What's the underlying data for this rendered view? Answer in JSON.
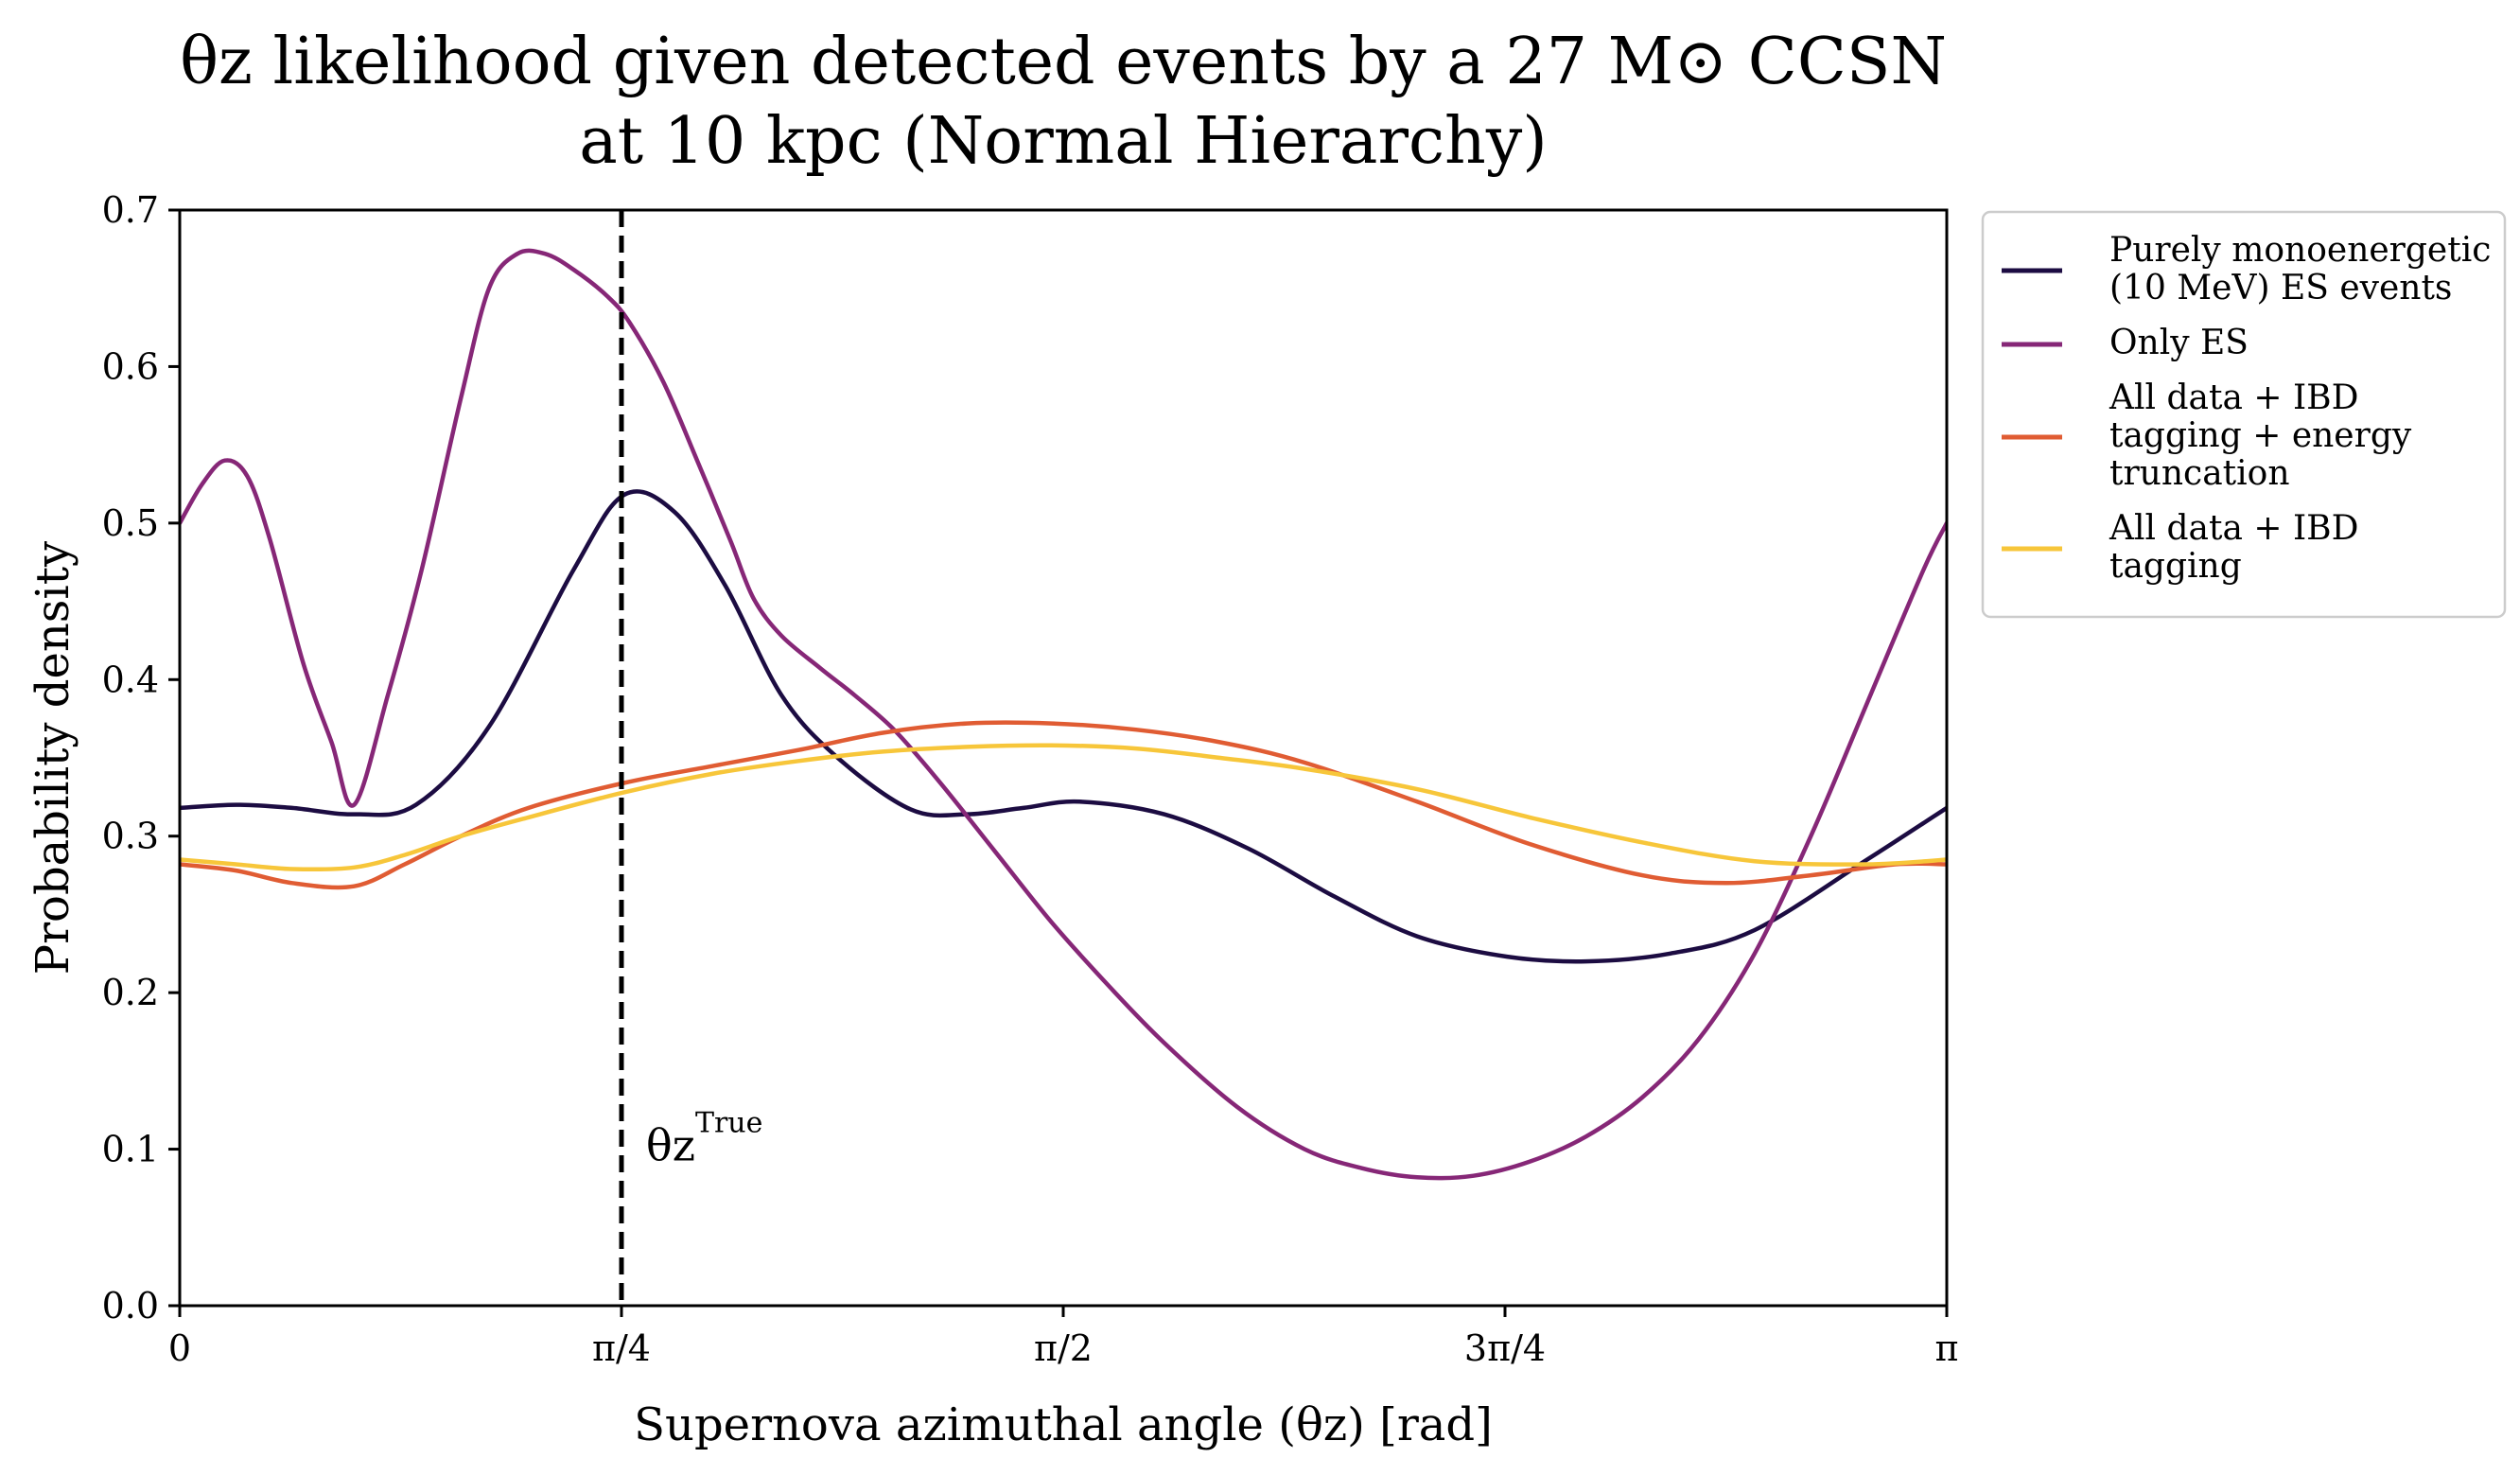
{
  "chart_data": {
    "type": "line",
    "title_lines": [
      "θz likelihood given detected events by a 27 M⊙ CCSN",
      "at 10 kpc (Normal Hierarchy)"
    ],
    "xlabel": "Supernova azimuthal angle (θz) [rad]",
    "ylabel": "Probability density",
    "xlim": [
      0,
      3.14159
    ],
    "ylim": [
      0,
      0.7
    ],
    "grid": false,
    "legend_position": "outside-right",
    "x_ticks": [
      {
        "value": 0,
        "label": "0"
      },
      {
        "value": 0.7854,
        "label": "π/4"
      },
      {
        "value": 1.5708,
        "label": "π/2"
      },
      {
        "value": 2.3562,
        "label": "3π/4"
      },
      {
        "value": 3.14159,
        "label": "π"
      }
    ],
    "y_ticks": [
      {
        "value": 0.0,
        "label": "0.0"
      },
      {
        "value": 0.1,
        "label": "0.1"
      },
      {
        "value": 0.2,
        "label": "0.2"
      },
      {
        "value": 0.3,
        "label": "0.3"
      },
      {
        "value": 0.4,
        "label": "0.4"
      },
      {
        "value": 0.5,
        "label": "0.5"
      },
      {
        "value": 0.6,
        "label": "0.6"
      },
      {
        "value": 0.7,
        "label": "0.7"
      }
    ],
    "vline": {
      "x": 0.7854,
      "label": "θz True",
      "color": "#000000"
    },
    "series": [
      {
        "name": "Purely monoenergetic (10 MeV) ES events",
        "legend_lines": [
          "Purely monoenergetic",
          "(10 MeV) ES events"
        ],
        "color": "#1c0c42",
        "x": [
          0,
          0.1,
          0.2,
          0.31,
          0.42,
          0.55,
          0.7,
          0.79,
          0.88,
          0.97,
          1.07,
          1.17,
          1.3,
          1.4,
          1.5,
          1.6,
          1.75,
          1.9,
          2.05,
          2.2,
          2.36,
          2.5,
          2.65,
          2.8,
          3.0,
          3.14159
        ],
        "y": [
          0.318,
          0.32,
          0.318,
          0.314,
          0.32,
          0.37,
          0.47,
          0.518,
          0.507,
          0.46,
          0.39,
          0.35,
          0.317,
          0.314,
          0.318,
          0.322,
          0.314,
          0.292,
          0.262,
          0.236,
          0.223,
          0.22,
          0.225,
          0.24,
          0.285,
          0.318
        ]
      },
      {
        "name": "Only ES",
        "legend_lines": [
          "Only ES"
        ],
        "color": "#862777",
        "x": [
          0,
          0.04,
          0.08,
          0.12,
          0.16,
          0.22,
          0.27,
          0.31,
          0.37,
          0.43,
          0.5,
          0.55,
          0.6,
          0.65,
          0.7,
          0.76,
          0.8,
          0.86,
          0.92,
          0.98,
          1.02,
          1.07,
          1.14,
          1.2,
          1.27,
          1.35,
          1.45,
          1.55,
          1.65,
          1.75,
          1.88,
          2.0,
          2.1,
          2.2,
          2.3,
          2.4,
          2.5,
          2.6,
          2.7,
          2.8,
          2.9,
          3.0,
          3.1,
          3.14159
        ],
        "y": [
          0.5,
          0.525,
          0.54,
          0.53,
          0.49,
          0.41,
          0.36,
          0.32,
          0.39,
          0.47,
          0.58,
          0.65,
          0.672,
          0.672,
          0.662,
          0.645,
          0.628,
          0.59,
          0.54,
          0.488,
          0.452,
          0.428,
          0.407,
          0.39,
          0.368,
          0.335,
          0.29,
          0.245,
          0.205,
          0.168,
          0.127,
          0.1,
          0.088,
          0.082,
          0.083,
          0.092,
          0.108,
          0.133,
          0.17,
          0.225,
          0.3,
          0.385,
          0.47,
          0.5
        ]
      },
      {
        "name": "All data + IBD tagging + energy truncation",
        "legend_lines": [
          "All data + IBD",
          "tagging + energy",
          "truncation"
        ],
        "color": "#e05c33",
        "x": [
          0,
          0.1,
          0.2,
          0.31,
          0.4,
          0.5,
          0.62,
          0.79,
          0.95,
          1.1,
          1.25,
          1.4,
          1.55,
          1.7,
          1.85,
          2.0,
          2.2,
          2.4,
          2.6,
          2.75,
          2.9,
          3.05,
          3.14159
        ],
        "y": [
          0.282,
          0.278,
          0.27,
          0.268,
          0.282,
          0.3,
          0.318,
          0.334,
          0.345,
          0.355,
          0.366,
          0.372,
          0.372,
          0.368,
          0.36,
          0.347,
          0.322,
          0.295,
          0.275,
          0.27,
          0.275,
          0.282,
          0.282
        ]
      },
      {
        "name": "All data + IBD tagging",
        "legend_lines": [
          "All data + IBD",
          "tagging"
        ],
        "color": "#f7c63a",
        "x": [
          0,
          0.1,
          0.2,
          0.31,
          0.4,
          0.5,
          0.62,
          0.79,
          0.95,
          1.1,
          1.25,
          1.4,
          1.55,
          1.7,
          1.85,
          2.0,
          2.2,
          2.4,
          2.6,
          2.8,
          3.0,
          3.14159
        ],
        "y": [
          0.285,
          0.282,
          0.279,
          0.28,
          0.288,
          0.3,
          0.312,
          0.328,
          0.34,
          0.348,
          0.354,
          0.357,
          0.358,
          0.356,
          0.35,
          0.343,
          0.33,
          0.312,
          0.296,
          0.284,
          0.282,
          0.285
        ]
      }
    ]
  }
}
